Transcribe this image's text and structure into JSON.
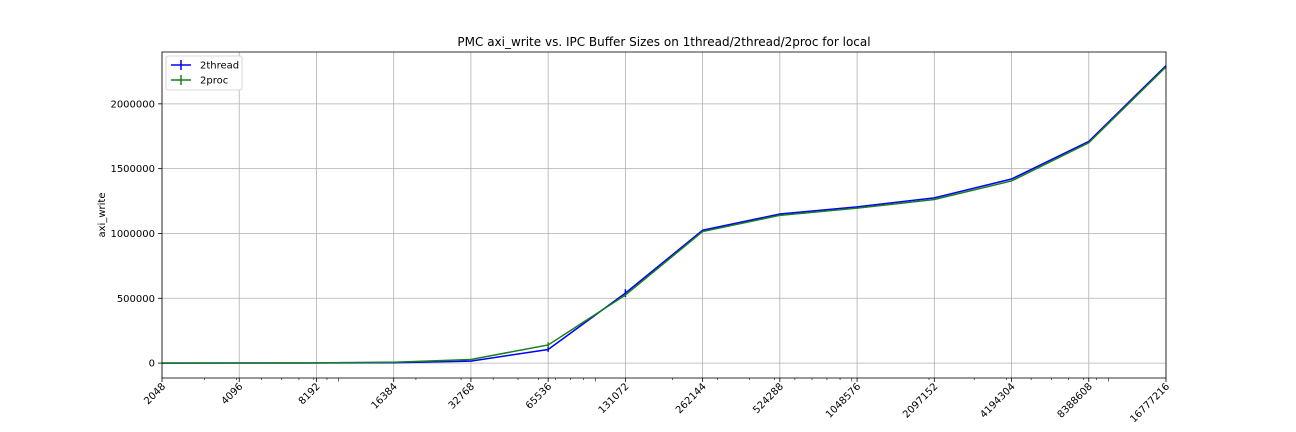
{
  "chart_data": {
    "type": "line",
    "title": "PMC axi_write vs. IPC Buffer Sizes on 1thread/2thread/2proc for local",
    "xlabel": "",
    "ylabel": "axi_write",
    "x_scale": "log2",
    "x": [
      2048,
      4096,
      8192,
      16384,
      32768,
      65536,
      131072,
      262144,
      524288,
      1048576,
      2097152,
      4194304,
      8388608,
      16777216
    ],
    "x_tick_labels": [
      "2048",
      "4096",
      "8192",
      "16384",
      "32768",
      "65536",
      "131072",
      "262144",
      "524288",
      "1048576",
      "2097152",
      "4194304",
      "8388608",
      "16777216"
    ],
    "y_ticks": [
      0,
      500000,
      1000000,
      1500000,
      2000000
    ],
    "y_tick_labels": [
      "0",
      "500000",
      "1000000",
      "1500000",
      "2000000"
    ],
    "ylim": [
      -115000,
      2400000
    ],
    "grid": true,
    "legend_position": "top-left",
    "series": [
      {
        "name": "2thread",
        "color": "#0000ff",
        "values": [
          200,
          400,
          800,
          3000,
          15000,
          105000,
          540000,
          1025000,
          1150000,
          1205000,
          1275000,
          1420000,
          1710000,
          2295000
        ],
        "errors": [
          0,
          0,
          0,
          0,
          0,
          18000,
          30000,
          0,
          0,
          0,
          0,
          0,
          0,
          0
        ]
      },
      {
        "name": "2proc",
        "color": "#1a7f1a",
        "values": [
          300,
          600,
          1500,
          7000,
          28000,
          140000,
          525000,
          1015000,
          1140000,
          1195000,
          1262000,
          1405000,
          1700000,
          2285000
        ],
        "errors": [
          0,
          0,
          0,
          0,
          0,
          20000,
          0,
          0,
          0,
          0,
          0,
          0,
          0,
          0
        ]
      }
    ]
  }
}
